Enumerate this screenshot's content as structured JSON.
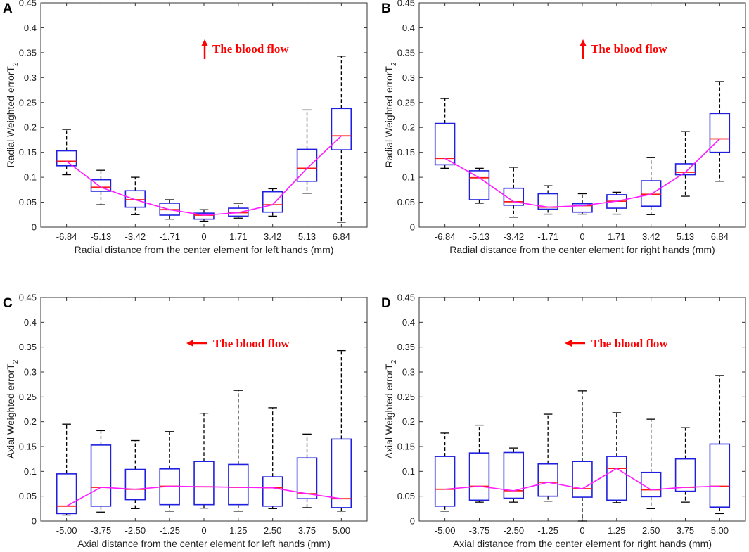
{
  "figure": {
    "colors": {
      "box": "#1f1fe0",
      "median": "#ff1a1a",
      "trend": "#ff1aff",
      "whisker": "#000000",
      "annotation": "#ff0000",
      "axis": "#333333"
    }
  },
  "chart_data": [
    {
      "panel": "A",
      "type": "box",
      "xlabel": "Radial distance from the center element for left hands (mm)",
      "ylabel": "Radial Weighted error",
      "ylabel_sym": "T",
      "ylabel_sub": "2",
      "categories": [
        "-6.84",
        "-5.13",
        "-3.42",
        "-1.71",
        "0",
        "1.71",
        "3.42",
        "5.13",
        "6.84"
      ],
      "ylim": [
        0,
        0.45
      ],
      "yticks": [
        "0",
        "0.05",
        "0.1",
        "0.15",
        "0.2",
        "0.25",
        "0.3",
        "0.35",
        "0.4",
        "0.45"
      ],
      "annotation": {
        "text": "The blood flow",
        "arrow": "up"
      },
      "boxes": [
        {
          "min": 0.105,
          "q1": 0.123,
          "median": 0.132,
          "q3": 0.153,
          "max": 0.196
        },
        {
          "min": 0.045,
          "q1": 0.072,
          "median": 0.08,
          "q3": 0.095,
          "max": 0.114
        },
        {
          "min": 0.025,
          "q1": 0.04,
          "median": 0.055,
          "q3": 0.073,
          "max": 0.1
        },
        {
          "min": 0.016,
          "q1": 0.024,
          "median": 0.035,
          "q3": 0.048,
          "max": 0.055
        },
        {
          "min": 0.012,
          "q1": 0.016,
          "median": 0.024,
          "q3": 0.028,
          "max": 0.035
        },
        {
          "min": 0.018,
          "q1": 0.022,
          "median": 0.029,
          "q3": 0.038,
          "max": 0.048
        },
        {
          "min": 0.022,
          "q1": 0.03,
          "median": 0.045,
          "q3": 0.071,
          "max": 0.077
        },
        {
          "min": 0.068,
          "q1": 0.092,
          "median": 0.118,
          "q3": 0.156,
          "max": 0.235
        },
        {
          "min": 0.01,
          "q1": 0.155,
          "median": 0.183,
          "q3": 0.238,
          "max": 0.343
        }
      ]
    },
    {
      "panel": "B",
      "type": "box",
      "xlabel": "Radial distance from the center element for right hands (mm)",
      "ylabel": "Radial Weighted error",
      "ylabel_sym": "T",
      "ylabel_sub": "2",
      "categories": [
        "-6.84",
        "-5.13",
        "-3.42",
        "-1.71",
        "0",
        "1.71",
        "3.42",
        "5.13",
        "6.84"
      ],
      "ylim": [
        0,
        0.45
      ],
      "yticks": [
        "0",
        "0.05",
        "0.1",
        "0.15",
        "0.2",
        "0.25",
        "0.3",
        "0.35",
        "0.4",
        "0.45"
      ],
      "annotation": {
        "text": "The blood flow",
        "arrow": "up"
      },
      "boxes": [
        {
          "min": 0.118,
          "q1": 0.125,
          "median": 0.138,
          "q3": 0.208,
          "max": 0.258
        },
        {
          "min": 0.048,
          "q1": 0.055,
          "median": 0.099,
          "q3": 0.113,
          "max": 0.118
        },
        {
          "min": 0.02,
          "q1": 0.044,
          "median": 0.051,
          "q3": 0.078,
          "max": 0.12
        },
        {
          "min": 0.026,
          "q1": 0.036,
          "median": 0.04,
          "q3": 0.067,
          "max": 0.083
        },
        {
          "min": 0.026,
          "q1": 0.03,
          "median": 0.043,
          "q3": 0.047,
          "max": 0.067
        },
        {
          "min": 0.026,
          "q1": 0.038,
          "median": 0.052,
          "q3": 0.065,
          "max": 0.07
        },
        {
          "min": 0.025,
          "q1": 0.042,
          "median": 0.066,
          "q3": 0.093,
          "max": 0.14
        },
        {
          "min": 0.062,
          "q1": 0.105,
          "median": 0.11,
          "q3": 0.127,
          "max": 0.192
        },
        {
          "min": 0.092,
          "q1": 0.15,
          "median": 0.177,
          "q3": 0.228,
          "max": 0.292
        }
      ]
    },
    {
      "panel": "C",
      "type": "box",
      "xlabel": "Axial distance from the center element for left hands (mm)",
      "ylabel": "Axial Weighted error",
      "ylabel_sym": "T",
      "ylabel_sub": "2",
      "categories": [
        "-5.00",
        "-3.75",
        "-2.50",
        "-1.25",
        "0",
        "1.25",
        "2.50",
        "3.75",
        "5.00"
      ],
      "ylim": [
        0,
        0.45
      ],
      "yticks": [
        "0",
        "0.05",
        "0.1",
        "0.15",
        "0.2",
        "0.25",
        "0.3",
        "0.35",
        "0.4",
        "0.45"
      ],
      "annotation": {
        "text": "The blood flow",
        "arrow": "left"
      },
      "boxes": [
        {
          "min": 0.012,
          "q1": 0.015,
          "median": 0.03,
          "q3": 0.095,
          "max": 0.195
        },
        {
          "min": 0.018,
          "q1": 0.03,
          "median": 0.068,
          "q3": 0.153,
          "max": 0.182
        },
        {
          "min": 0.025,
          "q1": 0.043,
          "median": 0.064,
          "q3": 0.104,
          "max": 0.162
        },
        {
          "min": 0.02,
          "q1": 0.033,
          "median": 0.07,
          "q3": 0.105,
          "max": 0.18
        },
        {
          "min": 0.026,
          "q1": 0.033,
          "median": 0.069,
          "q3": 0.12,
          "max": 0.217
        },
        {
          "min": 0.02,
          "q1": 0.033,
          "median": 0.068,
          "q3": 0.114,
          "max": 0.263
        },
        {
          "min": 0.025,
          "q1": 0.03,
          "median": 0.067,
          "q3": 0.089,
          "max": 0.228
        },
        {
          "min": 0.027,
          "q1": 0.045,
          "median": 0.055,
          "q3": 0.127,
          "max": 0.175
        },
        {
          "min": 0.02,
          "q1": 0.027,
          "median": 0.045,
          "q3": 0.165,
          "max": 0.343
        }
      ]
    },
    {
      "panel": "D",
      "type": "box",
      "xlabel": "Axial distance from the center element for right hands (mm)",
      "ylabel": "Axial Weighted error",
      "ylabel_sym": "T",
      "ylabel_sub": "2",
      "categories": [
        "-5.00",
        "-3.75",
        "-2.50",
        "-1.25",
        "0",
        "1.25",
        "2.50",
        "3.75",
        "5.00"
      ],
      "ylim": [
        0,
        0.45
      ],
      "yticks": [
        "0",
        "0.05",
        "0.1",
        "0.15",
        "0.2",
        "0.25",
        "0.3",
        "0.35",
        "0.4",
        "0.45"
      ],
      "annotation": {
        "text": "The blood flow",
        "arrow": "left"
      },
      "boxes": [
        {
          "min": 0.02,
          "q1": 0.03,
          "median": 0.064,
          "q3": 0.13,
          "max": 0.177
        },
        {
          "min": 0.038,
          "q1": 0.042,
          "median": 0.07,
          "q3": 0.137,
          "max": 0.193
        },
        {
          "min": 0.038,
          "q1": 0.046,
          "median": 0.061,
          "q3": 0.138,
          "max": 0.147
        },
        {
          "min": 0.04,
          "q1": 0.05,
          "median": 0.078,
          "q3": 0.115,
          "max": 0.215
        },
        {
          "min": 0.0,
          "q1": 0.048,
          "median": 0.065,
          "q3": 0.12,
          "max": 0.262
        },
        {
          "min": 0.037,
          "q1": 0.042,
          "median": 0.106,
          "q3": 0.13,
          "max": 0.218
        },
        {
          "min": 0.025,
          "q1": 0.049,
          "median": 0.063,
          "q3": 0.098,
          "max": 0.205
        },
        {
          "min": 0.038,
          "q1": 0.06,
          "median": 0.068,
          "q3": 0.125,
          "max": 0.188
        },
        {
          "min": 0.015,
          "q1": 0.028,
          "median": 0.07,
          "q3": 0.155,
          "max": 0.293
        }
      ]
    }
  ]
}
